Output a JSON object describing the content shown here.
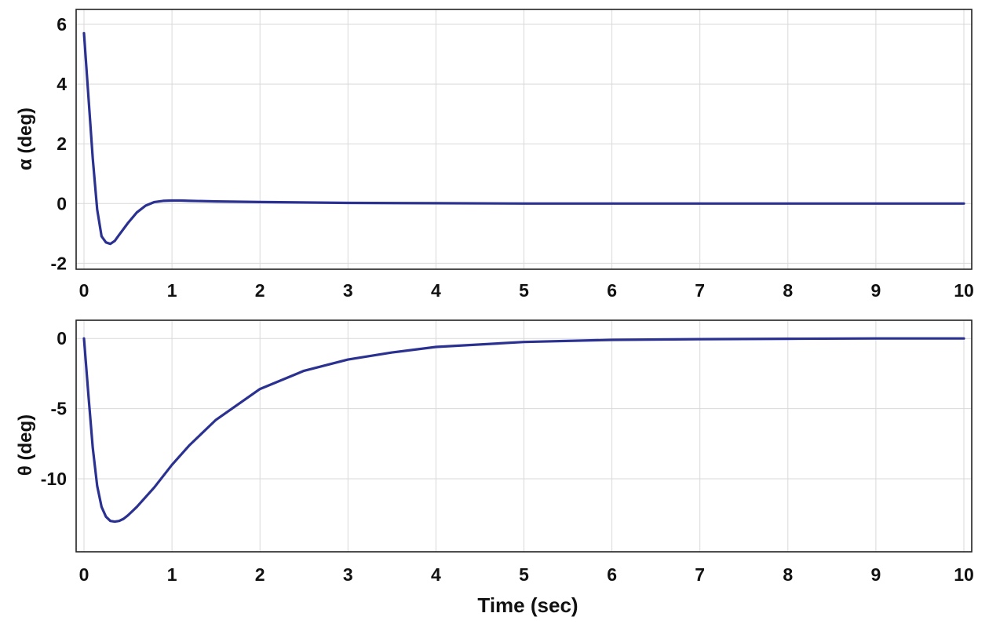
{
  "chart_data": [
    {
      "type": "line",
      "title": "",
      "xlabel": "",
      "ylabel": "α (deg)",
      "xlim": [
        0,
        10
      ],
      "ylim": [
        -2.2,
        6.5
      ],
      "xticks": [
        "0",
        "1",
        "2",
        "3",
        "4",
        "5",
        "6",
        "7",
        "8",
        "9",
        "10"
      ],
      "yticks": [
        "-2",
        "0",
        "2",
        "4",
        "6"
      ],
      "grid": true,
      "series": [
        {
          "color": "#2b3190",
          "x": [
            0,
            0.05,
            0.1,
            0.15,
            0.2,
            0.25,
            0.3,
            0.35,
            0.4,
            0.5,
            0.6,
            0.7,
            0.8,
            0.9,
            1.0,
            1.1,
            1.2,
            1.5,
            2.0,
            3.0,
            4.0,
            5.0,
            6.0,
            7.0,
            8.0,
            9.0,
            10.0
          ],
          "y": [
            5.7,
            3.6,
            1.5,
            -0.2,
            -1.1,
            -1.3,
            -1.35,
            -1.25,
            -1.05,
            -0.65,
            -0.3,
            -0.07,
            0.05,
            0.09,
            0.1,
            0.1,
            0.09,
            0.07,
            0.05,
            0.02,
            0.01,
            0.0,
            0.0,
            0.0,
            0.0,
            0.0,
            0.0
          ]
        }
      ]
    },
    {
      "type": "line",
      "title": "",
      "xlabel": "Time (sec)",
      "ylabel": "θ (deg)",
      "xlim": [
        0,
        10
      ],
      "ylim": [
        -15.2,
        1.3
      ],
      "xticks": [
        "0",
        "1",
        "2",
        "3",
        "4",
        "5",
        "6",
        "7",
        "8",
        "9",
        "10"
      ],
      "yticks": [
        "0",
        "-5",
        "-10"
      ],
      "grid": true,
      "series": [
        {
          "color": "#2b3190",
          "x": [
            0,
            0.05,
            0.1,
            0.15,
            0.2,
            0.25,
            0.3,
            0.35,
            0.4,
            0.45,
            0.5,
            0.6,
            0.7,
            0.8,
            1.0,
            1.2,
            1.5,
            2.0,
            2.5,
            3.0,
            3.5,
            4.0,
            5.0,
            6.0,
            7.0,
            8.0,
            9.0,
            10.0
          ],
          "y": [
            0,
            -4.0,
            -7.8,
            -10.5,
            -12.0,
            -12.7,
            -13.0,
            -13.05,
            -13.0,
            -12.85,
            -12.6,
            -12.0,
            -11.3,
            -10.6,
            -9.0,
            -7.6,
            -5.8,
            -3.6,
            -2.3,
            -1.5,
            -1.0,
            -0.6,
            -0.25,
            -0.1,
            -0.05,
            -0.02,
            0.0,
            0.0
          ]
        }
      ]
    }
  ]
}
